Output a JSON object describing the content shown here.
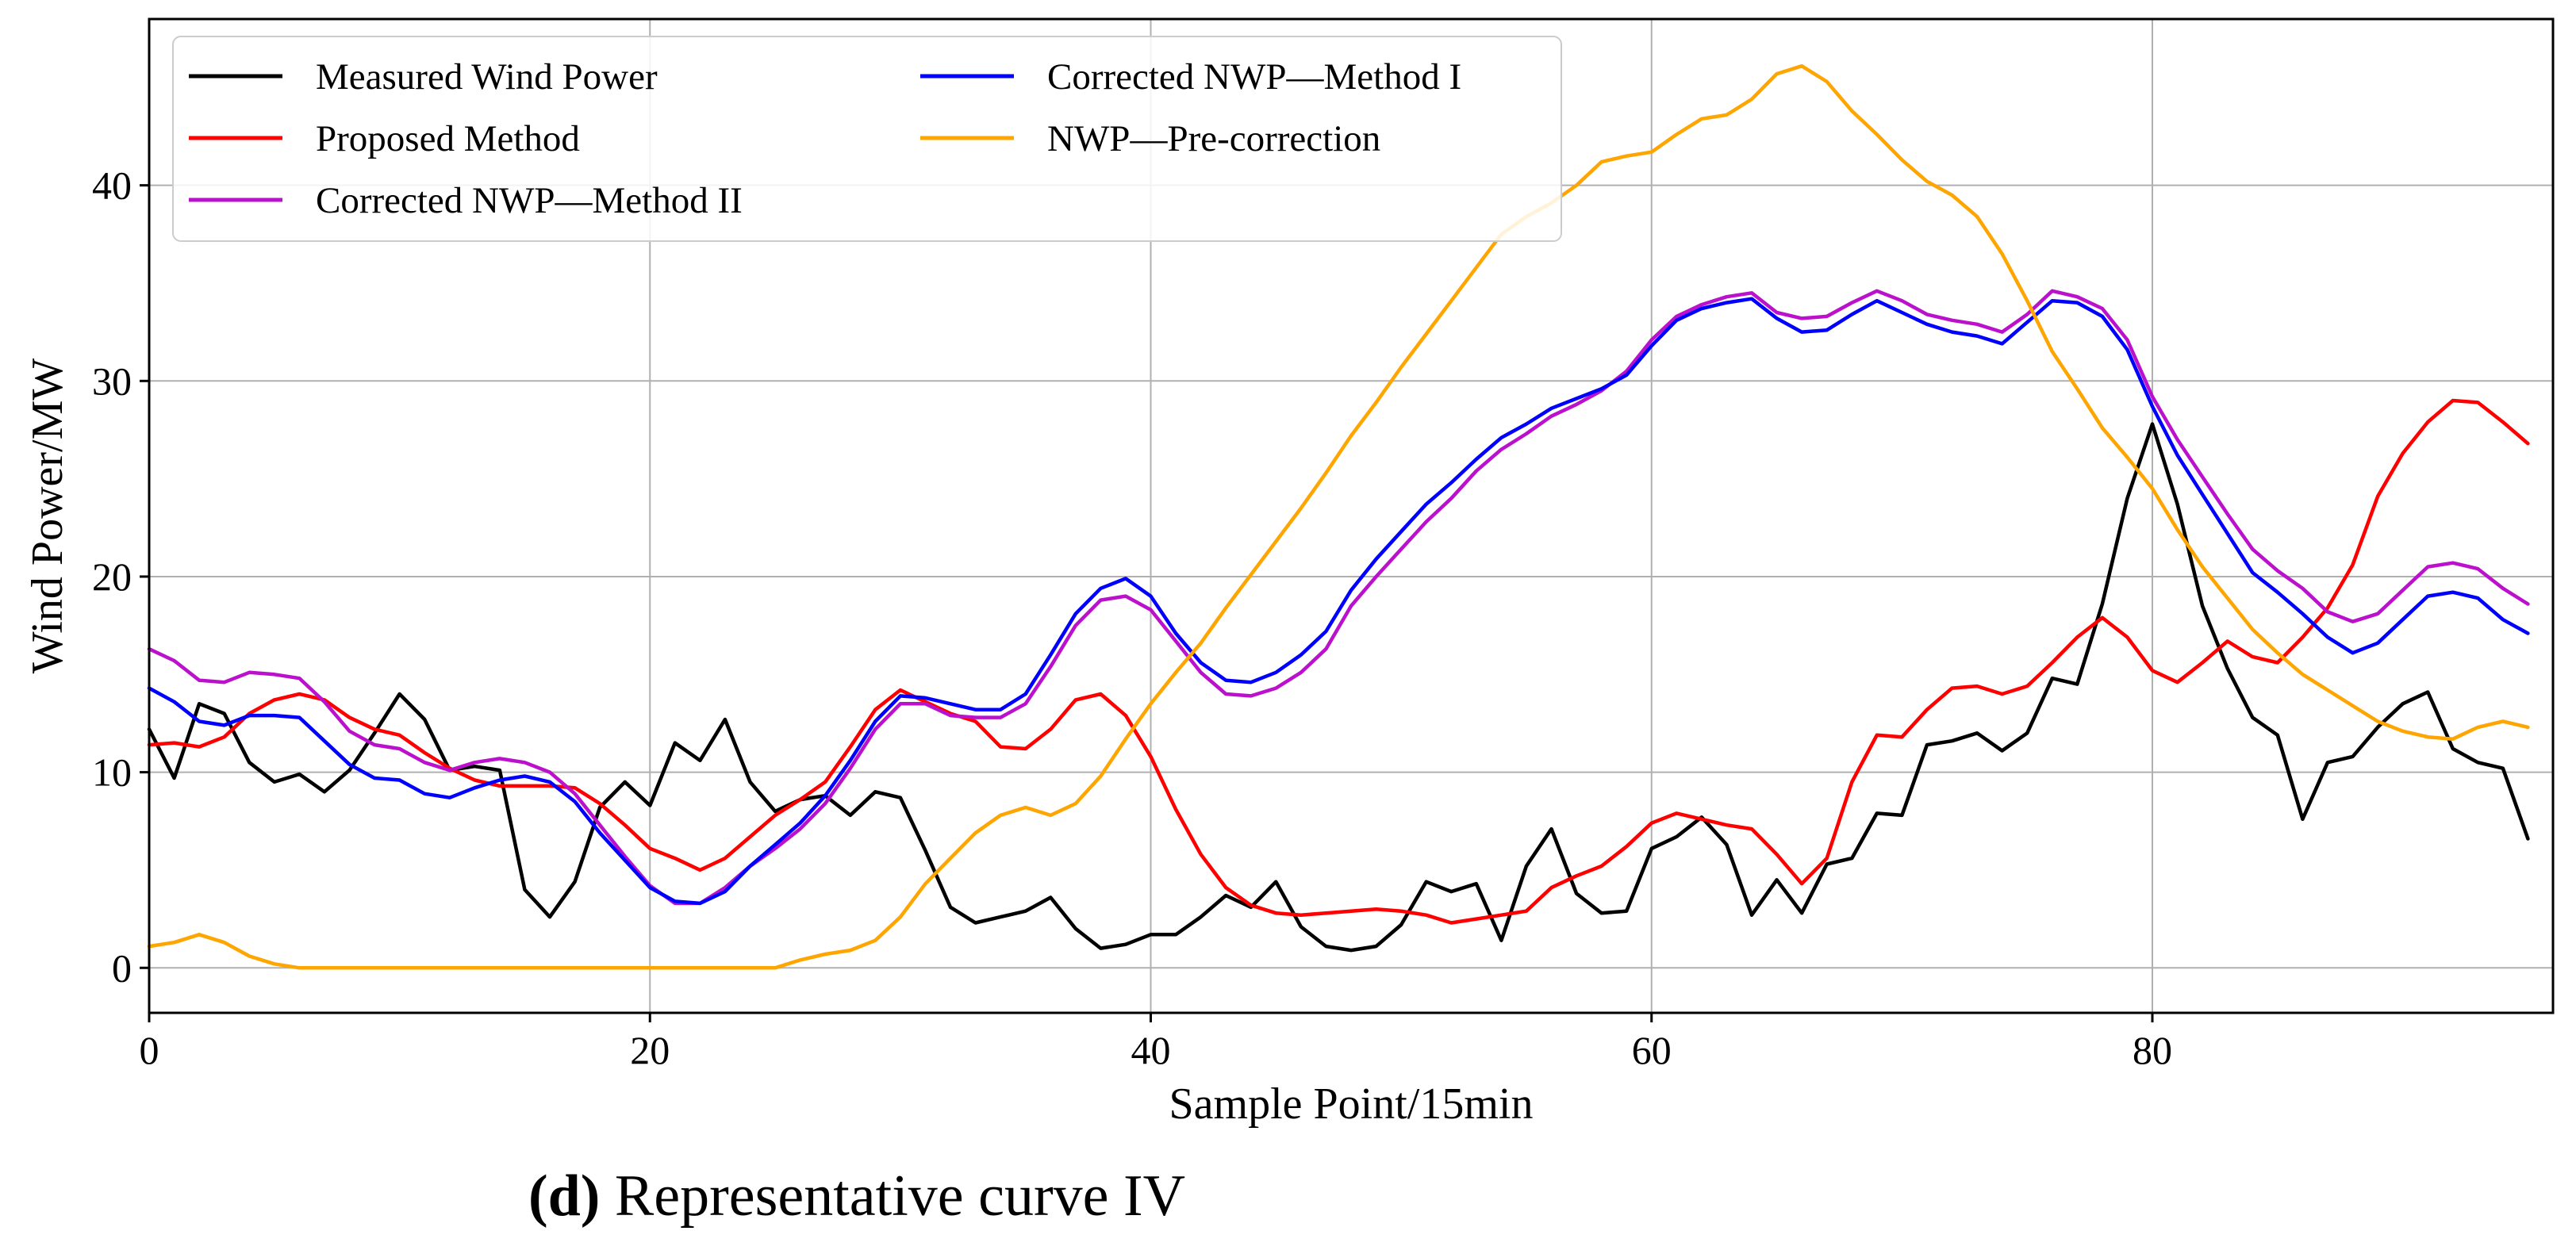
{
  "chart_data": {
    "type": "line",
    "title": "",
    "xlabel": "Sample Point/15min",
    "ylabel": "Wind Power/MW",
    "xlim": [
      0,
      96
    ],
    "ylim": [
      -2.3,
      48.5
    ],
    "xticks": [
      0,
      20,
      40,
      60,
      80
    ],
    "yticks": [
      0,
      10,
      20,
      30,
      40
    ],
    "grid": true,
    "legend_position": "top-left",
    "caption_bold": "(d)",
    "caption_rest": " Representative curve IV",
    "series": [
      {
        "name": "Measured Wind Power",
        "color": "#000000",
        "values": [
          12.2,
          9.7,
          13.5,
          13.0,
          10.5,
          9.5,
          9.9,
          9.0,
          10.1,
          12.0,
          14.0,
          12.7,
          10.1,
          10.3,
          10.1,
          4.0,
          2.6,
          4.4,
          8.2,
          9.5,
          8.3,
          11.5,
          10.6,
          12.7,
          9.5,
          8.0,
          8.6,
          8.8,
          7.8,
          9.0,
          8.7,
          6.0,
          3.1,
          2.3,
          2.6,
          2.9,
          3.6,
          2.0,
          1.0,
          1.2,
          1.7,
          1.7,
          2.6,
          3.7,
          3.1,
          4.4,
          2.1,
          1.1,
          0.9,
          1.1,
          2.2,
          4.4,
          3.9,
          4.3,
          1.4,
          5.2,
          7.1,
          3.8,
          2.8,
          2.9,
          6.1,
          6.7,
          7.7,
          6.3,
          2.7,
          4.5,
          2.8,
          5.3,
          5.6,
          7.9,
          7.8,
          11.4,
          11.6,
          12.0,
          11.1,
          12.0,
          14.8,
          14.5,
          18.6,
          24.0,
          27.8,
          23.7,
          18.5,
          15.3,
          12.8,
          11.9,
          7.6,
          10.5,
          10.8,
          12.3,
          13.5,
          14.1,
          11.2,
          10.5,
          10.2,
          6.6
        ]
      },
      {
        "name": "Proposed Method",
        "color": "#ff0000",
        "values": [
          11.4,
          11.5,
          11.3,
          11.8,
          13.0,
          13.7,
          14.0,
          13.7,
          12.8,
          12.2,
          11.9,
          11.0,
          10.2,
          9.6,
          9.3,
          9.3,
          9.3,
          9.2,
          8.4,
          7.3,
          6.1,
          5.6,
          5.0,
          5.6,
          6.7,
          7.8,
          8.6,
          9.5,
          11.3,
          13.2,
          14.2,
          13.6,
          13.0,
          12.6,
          11.3,
          11.2,
          12.2,
          13.7,
          14.0,
          12.9,
          10.8,
          8.1,
          5.8,
          4.1,
          3.2,
          2.8,
          2.7,
          2.8,
          2.9,
          3.0,
          2.9,
          2.7,
          2.3,
          2.5,
          2.7,
          2.9,
          4.1,
          4.7,
          5.2,
          6.2,
          7.4,
          7.9,
          7.6,
          7.3,
          7.1,
          5.8,
          4.3,
          5.6,
          9.5,
          11.9,
          11.8,
          13.2,
          14.3,
          14.4,
          14.0,
          14.4,
          15.6,
          16.9,
          17.9,
          16.9,
          15.2,
          14.6,
          15.6,
          16.7,
          15.9,
          15.6,
          16.9,
          18.4,
          20.6,
          24.1,
          26.3,
          27.9,
          29.0,
          28.9,
          27.9,
          26.8
        ]
      },
      {
        "name": "Corrected NWP—Method II",
        "color": "#bb11cc",
        "values": [
          16.3,
          15.7,
          14.7,
          14.6,
          15.1,
          15.0,
          14.8,
          13.6,
          12.1,
          11.4,
          11.2,
          10.5,
          10.1,
          10.5,
          10.7,
          10.5,
          10.0,
          8.9,
          7.3,
          5.7,
          4.2,
          3.3,
          3.3,
          4.1,
          5.2,
          6.1,
          7.1,
          8.4,
          10.2,
          12.2,
          13.5,
          13.5,
          12.9,
          12.8,
          12.8,
          13.5,
          15.4,
          17.5,
          18.8,
          19.0,
          18.3,
          16.7,
          15.1,
          14.0,
          13.9,
          14.3,
          15.1,
          16.3,
          18.5,
          20.0,
          21.4,
          22.8,
          24.0,
          25.4,
          26.5,
          27.3,
          28.2,
          28.8,
          29.5,
          30.5,
          32.1,
          33.3,
          33.9,
          34.3,
          34.5,
          33.5,
          33.2,
          33.3,
          34.0,
          34.6,
          34.1,
          33.4,
          33.1,
          32.9,
          32.5,
          33.4,
          34.6,
          34.3,
          33.7,
          32.1,
          29.2,
          27.0,
          25.1,
          23.2,
          21.4,
          20.3,
          19.4,
          18.2,
          17.7,
          18.1,
          19.3,
          20.5,
          20.7,
          20.4,
          19.4,
          18.6
        ]
      },
      {
        "name": "Corrected NWP—Method I",
        "color": "#0000ff",
        "values": [
          14.3,
          13.6,
          12.6,
          12.4,
          12.9,
          12.9,
          12.8,
          11.6,
          10.4,
          9.7,
          9.6,
          8.9,
          8.7,
          9.2,
          9.6,
          9.8,
          9.5,
          8.5,
          6.9,
          5.5,
          4.1,
          3.4,
          3.3,
          3.9,
          5.2,
          6.3,
          7.4,
          8.8,
          10.6,
          12.6,
          13.9,
          13.8,
          13.5,
          13.2,
          13.2,
          14.0,
          16.0,
          18.1,
          19.4,
          19.9,
          19.0,
          17.1,
          15.6,
          14.7,
          14.6,
          15.1,
          16.0,
          17.2,
          19.3,
          20.9,
          22.3,
          23.7,
          24.8,
          26.0,
          27.1,
          27.8,
          28.6,
          29.1,
          29.6,
          30.3,
          31.8,
          33.1,
          33.7,
          34.0,
          34.2,
          33.2,
          32.5,
          32.6,
          33.4,
          34.1,
          33.5,
          32.9,
          32.5,
          32.3,
          31.9,
          33.0,
          34.1,
          34.0,
          33.3,
          31.6,
          28.7,
          26.2,
          24.2,
          22.2,
          20.2,
          19.2,
          18.1,
          16.9,
          16.1,
          16.6,
          17.8,
          19.0,
          19.2,
          18.9,
          17.8,
          17.1
        ]
      },
      {
        "name": "NWP—Pre-correction",
        "color": "#ffa500",
        "values": [
          1.1,
          1.3,
          1.7,
          1.3,
          0.6,
          0.2,
          0.0,
          0.0,
          0.0,
          0.0,
          0.0,
          0.0,
          0.0,
          0.0,
          0.0,
          0.0,
          0.0,
          0.0,
          0.0,
          0.0,
          0.0,
          0.0,
          0.0,
          0.0,
          0.0,
          0.0,
          0.4,
          0.7,
          0.9,
          1.4,
          2.6,
          4.3,
          5.6,
          6.9,
          7.8,
          8.2,
          7.8,
          8.4,
          9.8,
          11.7,
          13.5,
          15.1,
          16.6,
          18.4,
          20.1,
          21.8,
          23.5,
          25.3,
          27.2,
          28.9,
          30.7,
          32.4,
          34.1,
          35.8,
          37.5,
          38.4,
          39.1,
          40.0,
          41.2,
          41.5,
          41.7,
          42.6,
          43.4,
          43.6,
          44.4,
          45.7,
          46.1,
          45.3,
          43.8,
          42.6,
          41.3,
          40.2,
          39.5,
          38.4,
          36.5,
          34.1,
          31.5,
          29.6,
          27.6,
          26.1,
          24.5,
          22.4,
          20.5,
          18.9,
          17.3,
          16.1,
          15.0,
          14.2,
          13.4,
          12.6,
          12.1,
          11.8,
          11.7,
          12.3,
          12.6,
          12.3
        ]
      }
    ]
  }
}
